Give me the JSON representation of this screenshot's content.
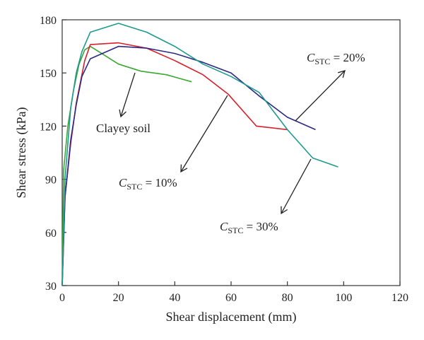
{
  "chart_data": {
    "type": "line",
    "xlabel": "Shear displacement (mm)",
    "ylabel": "Shear stress (kPa)",
    "xlim": [
      0,
      120
    ],
    "ylim": [
      30,
      180
    ],
    "xticks": [
      "0",
      "20",
      "40",
      "60",
      "80",
      "100",
      "120"
    ],
    "yticks": [
      "30",
      "60",
      "90",
      "120",
      "150",
      "180"
    ],
    "grid": false,
    "legend": "none",
    "series": [
      {
        "name": "Clayey soil",
        "color": "#3aa832",
        "points": [
          [
            0,
            30
          ],
          [
            0.5,
            95
          ],
          [
            2,
            120
          ],
          [
            4,
            140
          ],
          [
            6,
            155
          ],
          [
            8,
            163
          ],
          [
            10,
            165
          ],
          [
            15,
            160
          ],
          [
            20,
            155
          ],
          [
            28,
            151
          ],
          [
            37,
            149
          ],
          [
            46,
            145
          ]
        ]
      },
      {
        "name": "CSTC = 10%",
        "color": "#d8202b",
        "points": [
          [
            0,
            30
          ],
          [
            1,
            80
          ],
          [
            3,
            110
          ],
          [
            5,
            133
          ],
          [
            8,
            157
          ],
          [
            10,
            166
          ],
          [
            20,
            167
          ],
          [
            30,
            164
          ],
          [
            40,
            157
          ],
          [
            50,
            149
          ],
          [
            59,
            138
          ],
          [
            69,
            120
          ],
          [
            80,
            118
          ]
        ]
      },
      {
        "name": "CSTC = 20%",
        "color": "#2a2a86",
        "points": [
          [
            0,
            30
          ],
          [
            1,
            80
          ],
          [
            3,
            112
          ],
          [
            5,
            132
          ],
          [
            7,
            148
          ],
          [
            10,
            158
          ],
          [
            20,
            165
          ],
          [
            30,
            164
          ],
          [
            40,
            161
          ],
          [
            50,
            156
          ],
          [
            60,
            150
          ],
          [
            70,
            137
          ],
          [
            80,
            125
          ],
          [
            90,
            118
          ]
        ]
      },
      {
        "name": "CSTC = 30%",
        "color": "#1f9a8e",
        "points": [
          [
            0,
            30
          ],
          [
            1,
            90
          ],
          [
            3,
            130
          ],
          [
            5,
            150
          ],
          [
            7,
            162
          ],
          [
            10,
            173
          ],
          [
            20,
            178
          ],
          [
            30,
            173
          ],
          [
            40,
            165
          ],
          [
            50,
            155
          ],
          [
            60,
            148
          ],
          [
            70,
            139
          ],
          [
            80,
            118
          ],
          [
            89,
            102
          ],
          [
            98,
            97
          ]
        ]
      }
    ],
    "annotations": [
      {
        "id": "clayey",
        "text": "Clayey soil"
      },
      {
        "id": "c10",
        "italic": "C",
        "sub": "STC",
        "text": " = 10%"
      },
      {
        "id": "c20",
        "italic": "C",
        "sub": "STC",
        "text": " = 20%"
      },
      {
        "id": "c30",
        "italic": "C",
        "sub": "STC",
        "text": " = 30%"
      }
    ]
  }
}
